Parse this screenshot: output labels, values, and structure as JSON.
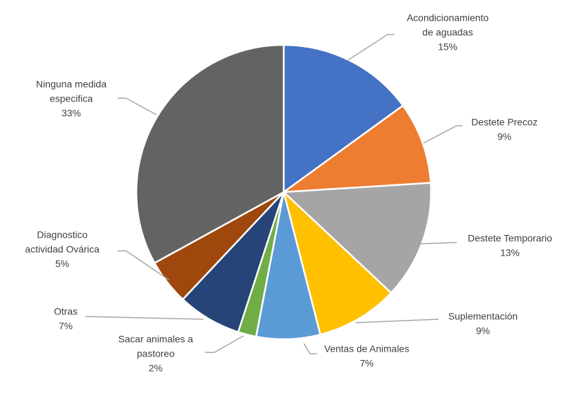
{
  "chart_data": {
    "type": "pie",
    "title": "",
    "start_angle_deg": 0,
    "direction": "clockwise",
    "slices": [
      {
        "label": [
          "Acondicionamiento",
          "de aguadas"
        ],
        "pct_label": "15%",
        "value": 15,
        "color": "#4472C4"
      },
      {
        "label": [
          "Destete Precoz"
        ],
        "pct_label": "9%",
        "value": 9,
        "color": "#ED7D31"
      },
      {
        "label": [
          "Destete Temporario"
        ],
        "pct_label": "13%",
        "value": 13,
        "color": "#A5A5A5"
      },
      {
        "label": [
          "Suplementación"
        ],
        "pct_label": "9%",
        "value": 9,
        "color": "#FFC000"
      },
      {
        "label": [
          "Ventas  de Animales"
        ],
        "pct_label": "7%",
        "value": 7,
        "color": "#5B9BD5"
      },
      {
        "label": [
          "Sacar animales a",
          "pastoreo"
        ],
        "pct_label": "2%",
        "value": 2,
        "color": "#70AD47"
      },
      {
        "label": [
          "Otras"
        ],
        "pct_label": "7%",
        "value": 7,
        "color": "#264478"
      },
      {
        "label": [
          "Diagnostico",
          "actividad Ovárica"
        ],
        "pct_label": "5%",
        "value": 5,
        "color": "#9E480E"
      },
      {
        "label": [
          "Ninguna medida",
          "especifica"
        ],
        "pct_label": "33%",
        "value": 33,
        "color": "#636363"
      }
    ]
  }
}
